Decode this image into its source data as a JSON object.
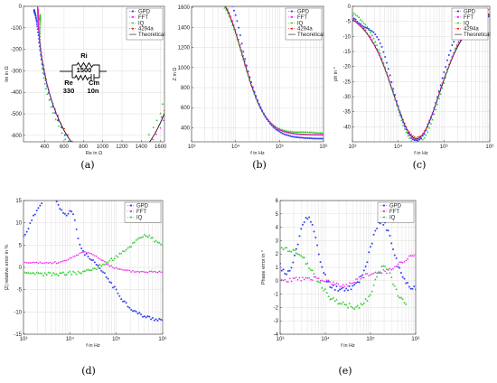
{
  "colors": {
    "GPD": "#3344ee",
    "FFT": "#ee22ee",
    "IQ": "#33cc33",
    "4294a": "#ee2222",
    "Theoretical": "#111111"
  },
  "panels": [
    "(a)",
    "(b)",
    "(c)",
    "(d)",
    "(e)"
  ],
  "circuit": {
    "labels": [
      "Ri",
      "1500",
      "Re",
      "Cm",
      "330",
      "10n"
    ]
  },
  "chart_data": [
    {
      "id": "a",
      "type": "scatter",
      "xlabel": "Re in Ω",
      "ylabel": "Im in Ω",
      "xlim": [
        180,
        1640
      ],
      "ylim": [
        -630,
        0
      ],
      "xticks": [
        400,
        600,
        800,
        1000,
        1200,
        1400,
        1600
      ],
      "yticks": [
        -600,
        -500,
        -400,
        -300,
        -200,
        -100,
        0
      ],
      "legend": [
        "GPD",
        "FFT",
        "IQ",
        "4294a",
        "Theoretical"
      ],
      "legend_position": "top-right"
    },
    {
      "id": "b",
      "type": "scatter",
      "xscale": "log",
      "xlabel": "f in Hz",
      "ylabel": "Z in Ω",
      "xlim": [
        1000,
        1000000
      ],
      "ylim": [
        260,
        1610
      ],
      "xticks": [
        1000,
        10000,
        100000,
        1000000
      ],
      "xtick_labels": [
        "10³",
        "10⁴",
        "10⁵",
        "10⁶"
      ],
      "yticks": [
        400,
        600,
        800,
        1000,
        1200,
        1400,
        1600
      ],
      "legend": [
        "GPD",
        "FFT",
        "IQ",
        "4294a",
        "Theoretical"
      ],
      "legend_position": "top-right"
    },
    {
      "id": "c",
      "type": "scatter",
      "xscale": "log",
      "xlabel": "f in Hz",
      "ylabel": "ph in °",
      "xlim": [
        1000,
        1000000
      ],
      "ylim": [
        -45,
        0
      ],
      "xticks": [
        1000,
        10000,
        100000,
        1000000
      ],
      "xtick_labels": [
        "10³",
        "10⁴",
        "10⁵",
        "10⁶"
      ],
      "yticks": [
        -40,
        -35,
        -30,
        -25,
        -20,
        -15,
        -10,
        -5,
        0
      ],
      "legend": [
        "GPD",
        "FFT",
        "IQ",
        "4294a",
        "Theoretical"
      ],
      "legend_position": "top-right"
    },
    {
      "id": "d",
      "type": "scatter",
      "xscale": "log",
      "xlabel": "f in Hz",
      "ylabel": "|Z| relative error in %",
      "xlim": [
        1000,
        1000000
      ],
      "ylim": [
        -15,
        15
      ],
      "xticks": [
        1000,
        10000,
        100000,
        1000000
      ],
      "xtick_labels": [
        "10³",
        "10⁴",
        "10⁵",
        "10⁶"
      ],
      "yticks": [
        -15,
        -10,
        -5,
        0,
        5,
        10,
        15
      ],
      "legend": [
        "GPD",
        "FFT",
        "IQ"
      ],
      "legend_position": "top-right"
    },
    {
      "id": "e",
      "type": "scatter",
      "xscale": "log",
      "xlabel": "f in Hz",
      "ylabel": "Phase error in °",
      "xlim": [
        1000,
        1000000
      ],
      "ylim": [
        -4,
        6
      ],
      "xticks": [
        1000,
        10000,
        100000,
        1000000
      ],
      "xtick_labels": [
        "10³",
        "10⁴",
        "10⁵",
        "10⁶"
      ],
      "yticks": [
        -4,
        -3,
        -2,
        -1,
        0,
        1,
        2,
        3,
        4,
        5,
        6
      ],
      "legend": [
        "GPD",
        "FFT",
        "IQ"
      ],
      "legend_position": "top-right"
    }
  ]
}
